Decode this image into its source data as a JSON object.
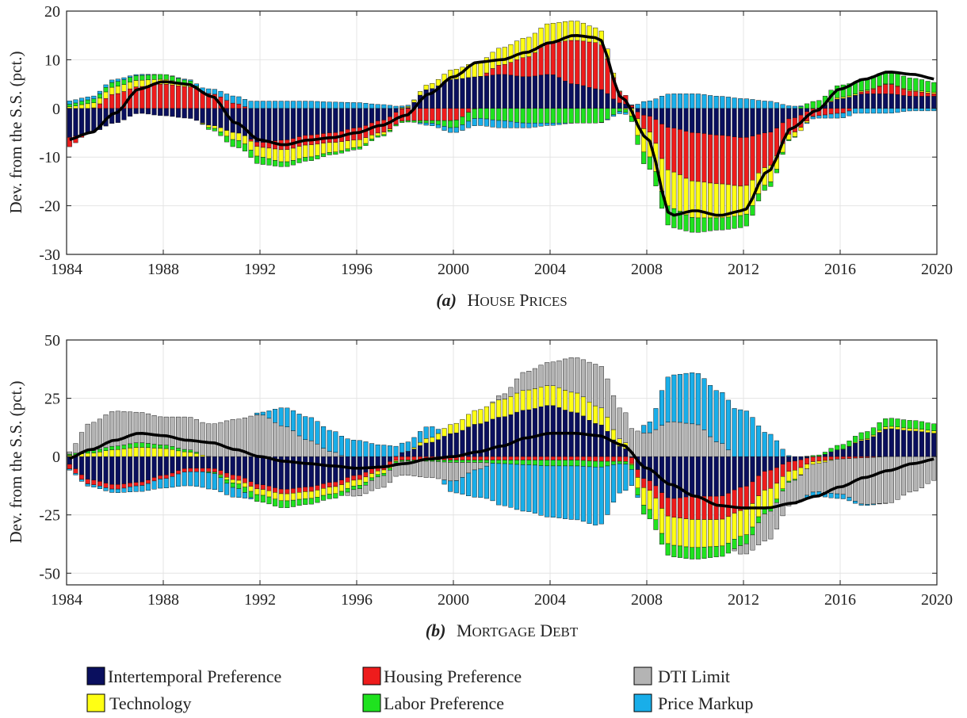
{
  "legend": [
    {
      "key": "intertemporal",
      "label": "Intertemporal Preference",
      "color": "#0a0f5e"
    },
    {
      "key": "housing",
      "label": "Housing Preference",
      "color": "#ee1c1c"
    },
    {
      "key": "dti",
      "label": "DTI Limit",
      "color": "#b4b4b4"
    },
    {
      "key": "technology",
      "label": "Technology",
      "color": "#ffff14"
    },
    {
      "key": "labor",
      "label": "Labor Preference",
      "color": "#1fe21f"
    },
    {
      "key": "markup",
      "label": "Price Markup",
      "color": "#19aee9"
    }
  ],
  "chart_data": [
    {
      "type": "bar",
      "stacked": true,
      "caption_letter": "(a)",
      "caption_text": "House Prices",
      "title": "",
      "ylabel": "Dev. from the S.S. (pct.)",
      "xlabel": "",
      "xlim": [
        1984,
        2020
      ],
      "ylim": [
        -30,
        20
      ],
      "xticks": [
        1984,
        1988,
        1992,
        1996,
        2000,
        2004,
        2008,
        2012,
        2016,
        2020
      ],
      "yticks": [
        20,
        10,
        0,
        -10,
        -20,
        -30
      ],
      "grid": true,
      "line_color": "#000000",
      "knots": {
        "x": [
          1984,
          1985,
          1986,
          1987,
          1988,
          1989,
          1990,
          1991,
          1992,
          1993,
          1994,
          1995,
          1996,
          1997,
          1998,
          1999,
          2000,
          2001,
          2002,
          2003,
          2004,
          2005,
          2006,
          2007,
          2008,
          2009,
          2010,
          2011,
          2012,
          2013,
          2014,
          2015,
          2016,
          2017,
          2018,
          2019,
          2020
        ],
        "total": [
          -6.5,
          -5,
          -1,
          4,
          5.5,
          5,
          2.5,
          -3,
          -6.5,
          -7.5,
          -6.5,
          -6,
          -5,
          -3.5,
          -1.5,
          3,
          6.5,
          9.5,
          10,
          11.5,
          13.5,
          15,
          14.5,
          2,
          -6,
          -22,
          -21,
          -22,
          -21,
          -13,
          -4,
          -0.5,
          4,
          6,
          7.5,
          7,
          6
        ],
        "intertemporal": [
          -6,
          -5,
          -3,
          -1,
          -1.5,
          -2,
          -3.5,
          -5,
          -7,
          -6.5,
          -5.5,
          -5,
          -4,
          -2.5,
          0,
          4,
          6,
          6.5,
          7,
          6.5,
          7,
          5,
          4,
          1,
          -1.5,
          -4,
          -5,
          -5.5,
          -6,
          -5,
          -2,
          0,
          2,
          3,
          3,
          2.5,
          2.5
        ],
        "housing": [
          -2,
          0,
          3,
          4.5,
          5,
          4.5,
          3,
          1,
          -1,
          -2,
          -2,
          -2,
          -2.5,
          -2.5,
          -2.5,
          -2.5,
          -2.5,
          0,
          2,
          4,
          6.5,
          9,
          9.5,
          2,
          -3,
          -9,
          -10,
          -10,
          -10,
          -7,
          -3,
          -1.5,
          -1,
          0.5,
          2,
          1,
          0.5
        ],
        "technology": [
          0.3,
          1,
          1.5,
          1.3,
          1,
          0.5,
          -0.5,
          -1.5,
          -2,
          -2.5,
          -2.5,
          -2,
          -1.5,
          -0.5,
          0.2,
          1,
          2,
          3,
          3.5,
          4,
          4,
          4,
          3,
          0,
          -5,
          -7.5,
          -7.5,
          -7,
          -6,
          -3.5,
          -1,
          0,
          0.3,
          0.2,
          0.1,
          0.2,
          0.3
        ],
        "labor": [
          0.5,
          0.8,
          1,
          1,
          1,
          0.8,
          -0.5,
          -1.5,
          -1.5,
          -1,
          -0.8,
          -0.5,
          -0.5,
          -0.3,
          -0.3,
          -0.5,
          -1.5,
          -2,
          -2.5,
          -3,
          -3,
          -3,
          -3,
          -0.5,
          -2.5,
          -4,
          -3,
          -2.5,
          -2.5,
          -1,
          -0.2,
          1.5,
          2.5,
          2.5,
          2.5,
          2.5,
          2
        ],
        "dti": [
          0,
          0,
          0,
          0,
          0,
          0,
          0,
          0,
          0,
          0,
          0,
          0,
          0,
          0,
          0,
          0,
          0,
          0,
          0,
          0,
          0,
          0,
          0,
          0,
          0,
          0,
          0,
          0,
          0,
          0,
          0,
          0,
          0,
          0,
          0,
          0,
          0
        ],
        "markup": [
          0.7,
          0.6,
          0.5,
          0.2,
          0,
          0.2,
          1,
          1.5,
          1.5,
          1.5,
          1.5,
          1.3,
          1.2,
          0.8,
          0.3,
          -0.5,
          -1,
          -1.5,
          -1.5,
          -1,
          -0.5,
          0,
          0,
          -0.5,
          1.5,
          3,
          3,
          2.5,
          2,
          1.5,
          0.5,
          -0.5,
          -1,
          -1,
          -1,
          -0.5,
          -0.5
        ]
      }
    },
    {
      "type": "bar",
      "stacked": true,
      "caption_letter": "(b)",
      "caption_text": "Mortgage Debt",
      "title": "",
      "ylabel": "Dev. from the S.S. (pct.)",
      "xlabel": "",
      "xlim": [
        1984,
        2020
      ],
      "ylim": [
        -55,
        50
      ],
      "xticks": [
        1984,
        1988,
        1992,
        1996,
        2000,
        2004,
        2008,
        2012,
        2016,
        2020
      ],
      "yticks": [
        50,
        25,
        0,
        -25,
        -50
      ],
      "grid": true,
      "line_color": "#000000",
      "knots": {
        "x": [
          1984,
          1985,
          1986,
          1987,
          1988,
          1989,
          1990,
          1991,
          1992,
          1993,
          1994,
          1995,
          1996,
          1997,
          1998,
          1999,
          2000,
          2001,
          2002,
          2003,
          2004,
          2005,
          2006,
          2007,
          2008,
          2009,
          2010,
          2011,
          2012,
          2013,
          2014,
          2015,
          2016,
          2017,
          2018,
          2019,
          2020
        ],
        "total": [
          -1,
          3,
          7,
          10,
          9,
          7,
          6,
          3,
          0,
          -2,
          -3,
          -4,
          -5,
          -4.5,
          -3,
          -1,
          0,
          2,
          4.5,
          8,
          10,
          10,
          9,
          5,
          -5,
          -12,
          -17,
          -21,
          -22,
          -22,
          -20,
          -17,
          -13,
          -9,
          -6,
          -3,
          -1
        ],
        "intertemporal": [
          -3,
          -10,
          -12,
          -11,
          -8,
          -5,
          -5,
          -8,
          -12,
          -14,
          -13,
          -11,
          -8,
          -4,
          2,
          6,
          10,
          14,
          17,
          20,
          22,
          19,
          14,
          4,
          -10,
          -18,
          -17,
          -17,
          -13,
          -6,
          -2,
          0,
          3,
          7,
          12,
          11,
          10
        ],
        "housing": [
          -2,
          -2,
          -2,
          -1.5,
          -1.5,
          -1.5,
          -1.5,
          -2,
          -2,
          -2,
          -2,
          -2,
          -2,
          -2,
          -1.5,
          -1.5,
          -1.5,
          -1.5,
          -1.5,
          -1.5,
          -1.5,
          -1.5,
          -2,
          -2,
          -4,
          -8,
          -10,
          -10,
          -10,
          -8,
          -4,
          -2,
          -1,
          -0.5,
          0,
          0,
          0
        ],
        "technology": [
          0.5,
          1.5,
          3,
          4,
          3.5,
          2,
          0,
          -1.5,
          -2.5,
          -3,
          -3,
          -3,
          -2.5,
          -1.5,
          0,
          2,
          4,
          6,
          7.5,
          8.5,
          8.5,
          8.5,
          7.5,
          3,
          -8,
          -12,
          -12,
          -11.5,
          -11,
          -8,
          -4,
          -1,
          0,
          0.5,
          1,
          1,
          1
        ],
        "labor": [
          0.5,
          1,
          1.5,
          2,
          1.5,
          1,
          -0.5,
          -2,
          -3,
          -3,
          -2.5,
          -2,
          -1.5,
          -1,
          -0.5,
          -0.5,
          -1,
          -1,
          -1.5,
          -2,
          -2.5,
          -2.5,
          -2.5,
          -1,
          -4,
          -5,
          -5,
          -4.5,
          -4,
          -2,
          -0.5,
          0.5,
          2,
          3,
          3.5,
          3.5,
          3
        ],
        "dti": [
          0.5,
          12,
          15,
          13,
          12,
          14,
          14,
          16,
          18,
          13,
          7,
          2,
          -3,
          -5,
          -6,
          -7,
          -8,
          -3,
          2,
          8,
          10,
          15,
          18,
          13,
          10,
          15,
          14,
          6,
          -4,
          -12,
          -10,
          -12,
          -15,
          -20,
          -20,
          -15,
          -10
        ],
        "markup": [
          -0.5,
          -1,
          -1.5,
          -2.5,
          -4,
          -6,
          -7,
          -4,
          1,
          8,
          10,
          9,
          7,
          5,
          4,
          5,
          -5,
          -12,
          -18,
          -20,
          -22,
          -23,
          -25,
          -12,
          4,
          20,
          22,
          22,
          20,
          10,
          0,
          -2,
          -2,
          -0.5,
          0,
          0,
          0
        ]
      }
    }
  ]
}
